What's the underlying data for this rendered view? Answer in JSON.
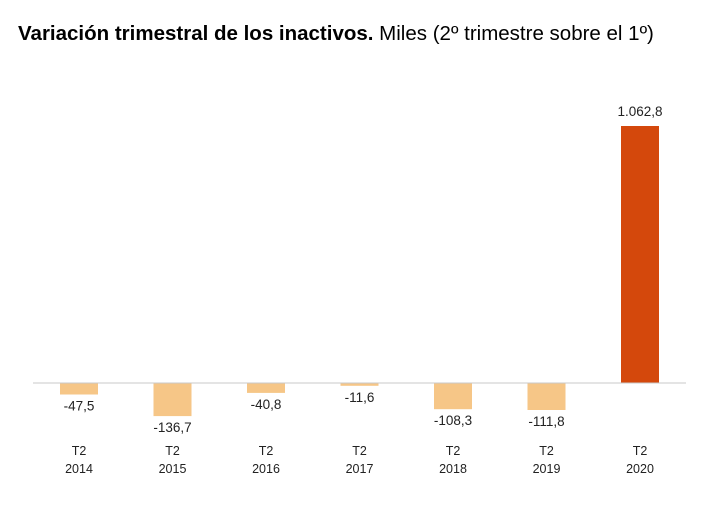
{
  "title_bold": "Variación trimestral de los inactivos.",
  "title_rest": " Miles (2º trimestre sobre el 1º)",
  "chart_data": {
    "type": "bar",
    "categories": [
      [
        "T2",
        "2014"
      ],
      [
        "T2",
        "2015"
      ],
      [
        "T2",
        "2016"
      ],
      [
        "T2",
        "2017"
      ],
      [
        "T2",
        "2018"
      ],
      [
        "T2",
        "2019"
      ],
      [
        "T2",
        "2020"
      ]
    ],
    "values": [
      -47.5,
      -136.7,
      -40.8,
      -11.6,
      -108.3,
      -111.8,
      1062.8
    ],
    "labels": [
      "-47,5",
      "-136,7",
      "-40,8",
      "-11,6",
      "-108,3",
      "-111,8",
      "1.062,8"
    ],
    "colors": [
      "#f6c687",
      "#f6c687",
      "#f6c687",
      "#f6c687",
      "#f6c687",
      "#f6c687",
      "#d4480c"
    ],
    "axis_color": "#c8c8c8",
    "grid": false,
    "legend": false
  }
}
